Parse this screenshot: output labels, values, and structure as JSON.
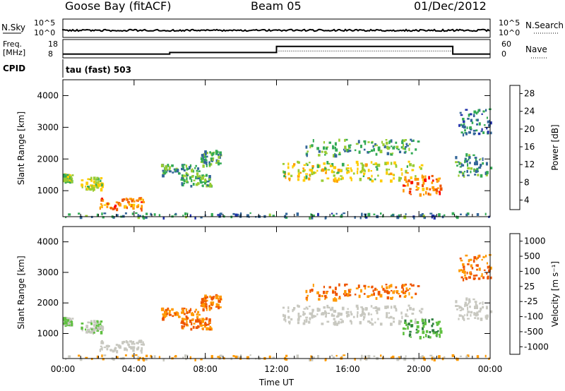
{
  "header": {
    "station": "Goose Bay (fitACF)",
    "beam": "Beam 05",
    "date": "01/Dec/2012"
  },
  "info_panel": {
    "noise_sky_label": "N.Sky",
    "noise_search_label": "N.Search",
    "noise_ticks": [
      "10^5",
      "10^0"
    ],
    "freq_label_line1": "Freq.",
    "freq_label_line2": "[MHz]",
    "freq_ticks": [
      "18",
      "8"
    ],
    "nave_label": "Nave",
    "nave_ticks": [
      "60",
      "0"
    ],
    "cpid_label": "CPID",
    "cpid_text": "tau (fast) 503"
  },
  "power_panel": {
    "ylabel": "Slant Range [km]",
    "ytick_labels": [
      "1000",
      "2000",
      "3000",
      "4000"
    ],
    "colorbar_label": "Power [dB]",
    "colorbar_ticks": [
      "28",
      "24",
      "20",
      "16",
      "12",
      "8",
      "4"
    ],
    "colors": [
      "#ff0000",
      "#ee5500",
      "#ff9900",
      "#ffcc00",
      "#99cc33",
      "#33aa55",
      "#336699",
      "#2233aa",
      "#0000ff"
    ]
  },
  "velocity_panel": {
    "ylabel": "Slant Range [km]",
    "ytick_labels": [
      "1000",
      "2000",
      "3000",
      "4000"
    ],
    "colorbar_label": "Velocity [m s⁻¹]",
    "colorbar_ticks": [
      "1000",
      "500",
      "100",
      "25",
      "-25",
      "-100",
      "-500",
      "-1000"
    ],
    "colors": [
      "#1a3fbf",
      "#2f7f3f",
      "#5fc040",
      "#c8c8c0",
      "#c8c8c0",
      "#ff9900",
      "#ee5500",
      "#ff0000"
    ]
  },
  "xaxis": {
    "title": "Time UT",
    "tick_labels": [
      "00:00",
      "04:00",
      "08:00",
      "12:00",
      "16:00",
      "20:00",
      "00:00"
    ]
  },
  "chart_data": {
    "type": "heatmap",
    "x_range_hours": [
      0,
      24
    ],
    "y_range_km": [
      180,
      4500
    ],
    "frequency_mhz": [
      [
        0,
        6,
        9.5
      ],
      [
        6,
        12,
        10.5
      ],
      [
        12,
        21.9,
        14.5
      ],
      [
        21.9,
        24,
        9.5
      ]
    ],
    "scatter_regions": [
      {
        "t0": 0.0,
        "t1": 0.5,
        "r0": 1300,
        "r1": 1550,
        "power": 13,
        "velocity": 100
      },
      {
        "t0": 1.0,
        "t1": 2.2,
        "r0": 1050,
        "r1": 1450,
        "power": 15,
        "velocity": 100
      },
      {
        "t0": 2.0,
        "t1": 4.5,
        "r0": 450,
        "r1": 800,
        "power": 24,
        "velocity": 25
      },
      {
        "t0": 0.0,
        "t1": 24.0,
        "r0": 180,
        "r1": 320,
        "power": 8,
        "velocity": -25
      },
      {
        "t0": 5.5,
        "t1": 7.6,
        "r0": 1500,
        "r1": 1850,
        "power": 10,
        "velocity": -100
      },
      {
        "t0": 6.6,
        "t1": 8.3,
        "r0": 1150,
        "r1": 1550,
        "power": 11,
        "velocity": -100
      },
      {
        "t0": 7.7,
        "t1": 8.8,
        "r0": 1800,
        "r1": 2300,
        "power": 9,
        "velocity": -100
      },
      {
        "t0": 12.2,
        "t1": 20.2,
        "r0": 1350,
        "r1": 1950,
        "power": 16,
        "velocity": 25
      },
      {
        "t0": 13.5,
        "t1": 20.0,
        "r0": 2150,
        "r1": 2650,
        "power": 11,
        "velocity": -100
      },
      {
        "t0": 19.0,
        "t1": 21.2,
        "r0": 900,
        "r1": 1500,
        "power": 24,
        "velocity": 500
      },
      {
        "t0": 22.0,
        "t1": 24.0,
        "r0": 1500,
        "r1": 2200,
        "power": 9,
        "velocity": 25
      },
      {
        "t0": 22.2,
        "t1": 24.0,
        "r0": 2800,
        "r1": 3600,
        "power": 7,
        "velocity": -100
      }
    ]
  }
}
